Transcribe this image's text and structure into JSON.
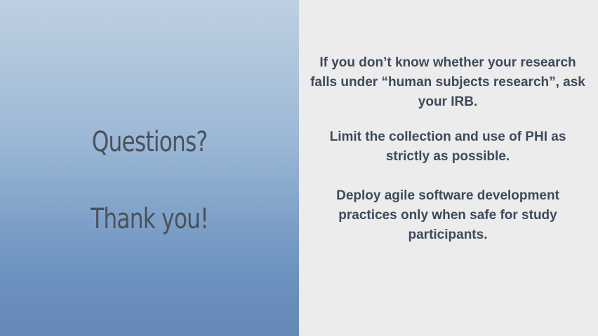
{
  "left": {
    "questions": "Questions?",
    "thanks": "Thank you!"
  },
  "right": {
    "points": [
      "If you don’t know whether your research falls under “human subjects research”, ask your IRB.",
      "Limit the collection and use of PHI as strictly as possible.",
      "Deploy agile software development practices only when safe for study participants."
    ]
  },
  "colors": {
    "left_gradient_top": "#bfd0e1",
    "left_gradient_bottom": "#6588b6",
    "right_background": "#ebeceb",
    "heading_text": "#4a525b",
    "body_text": "#3e4a5c"
  }
}
